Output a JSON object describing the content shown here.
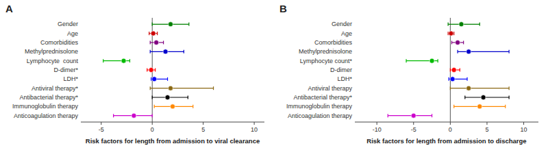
{
  "chart_data": [
    {
      "type": "errorbar",
      "orientation": "horizontal",
      "title": "A",
      "xlabel": "Risk factors for length from admission to viral clearance",
      "xlim": [
        -7,
        11
      ],
      "xticks": [
        -5,
        0,
        5,
        10
      ],
      "reference_line": 0,
      "categories": [
        "Gender",
        "Age",
        "Comorbidities",
        "Methylprednisolone",
        "Lymphocyte  count",
        "D-dimer*",
        "LDH*",
        "Antiviral therapy*",
        "Antibacterial therapy*",
        "Immunoglobulin therapy",
        "Anticoagulation therapy"
      ],
      "values": [
        1.8,
        0.1,
        0.4,
        1.3,
        -2.8,
        -0.1,
        0.2,
        1.8,
        1.5,
        2.0,
        -1.8
      ],
      "error_low": [
        1.8,
        0.4,
        0.6,
        1.5,
        2.0,
        0.4,
        0.3,
        2.0,
        1.5,
        1.8,
        2.0
      ],
      "error_high": [
        1.8,
        0.4,
        0.7,
        1.8,
        0.6,
        0.4,
        1.3,
        4.2,
        2.0,
        2.0,
        1.8
      ],
      "colors": [
        "#008000",
        "#cc0000",
        "#800080",
        "#0000cc",
        "#00bb00",
        "#ff0000",
        "#0000ff",
        "#8B6914",
        "#000000",
        "#ff8800",
        "#cc00cc"
      ],
      "grid": false
    },
    {
      "type": "errorbar",
      "orientation": "horizontal",
      "title": "B",
      "xlabel": "Risk factors for length from admission to discharge",
      "xlim": [
        -13,
        12
      ],
      "xticks": [
        -10,
        -5,
        0,
        5,
        10
      ],
      "reference_line": 0,
      "categories": [
        "Gender",
        "Age",
        "Comorbidities",
        "Methylprednisolone",
        "Lymphocyte count*",
        "D-dimer",
        "LDH*",
        "Antiviral therapy",
        "Antibacterial therapy*",
        "Immunoglobulin therapy",
        "Anticoagulation therapy"
      ],
      "values": [
        1.5,
        0.1,
        1.0,
        2.5,
        -2.5,
        0.5,
        0.3,
        2.5,
        4.5,
        4.0,
        -5.0
      ],
      "error_low": [
        1.8,
        0.4,
        0.8,
        1.5,
        3.5,
        0.5,
        0.5,
        2.5,
        2.5,
        3.5,
        3.5
      ],
      "error_high": [
        2.5,
        0.4,
        0.8,
        5.5,
        0.8,
        0.8,
        2.0,
        5.5,
        3.5,
        3.5,
        2.5
      ],
      "colors": [
        "#008000",
        "#cc0000",
        "#800080",
        "#0000cc",
        "#00bb00",
        "#ff0000",
        "#0000ff",
        "#8B6914",
        "#000000",
        "#ff8800",
        "#cc00cc"
      ],
      "grid": false
    }
  ]
}
